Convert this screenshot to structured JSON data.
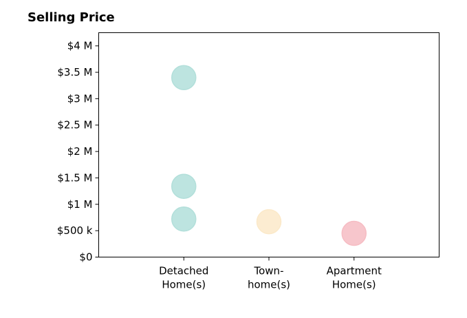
{
  "chart_data": {
    "type": "scatter",
    "title": "Selling Price",
    "categories": [
      "Detached\nHome(s)",
      "Town-\nhome(s)",
      "Apartment\nHome(s)"
    ],
    "yticks": [
      {
        "value": 0,
        "label": "$0"
      },
      {
        "value": 500000,
        "label": "$500 k"
      },
      {
        "value": 1000000,
        "label": "$1 M"
      },
      {
        "value": 1500000,
        "label": "$1.5 M"
      },
      {
        "value": 2000000,
        "label": "$2 M"
      },
      {
        "value": 2500000,
        "label": "$2.5 M"
      },
      {
        "value": 3000000,
        "label": "$3 M"
      },
      {
        "value": 3500000,
        "label": "$3.5 M"
      },
      {
        "value": 4000000,
        "label": "$4 M"
      }
    ],
    "ylim": [
      0,
      4250000
    ],
    "xlim": [
      -1,
      3
    ],
    "grid": false,
    "points": [
      {
        "category": "Detached\nHome(s)",
        "value": 3400000,
        "color": "#b2dfda"
      },
      {
        "category": "Detached\nHome(s)",
        "value": 1340000,
        "color": "#b2dfda"
      },
      {
        "category": "Detached\nHome(s)",
        "value": 720000,
        "color": "#b2dfda"
      },
      {
        "category": "Town-\nhome(s)",
        "value": 670000,
        "color": "#fbe9c9"
      },
      {
        "category": "Apartment\nHome(s)",
        "value": 450000,
        "color": "#f6bcc3"
      }
    ]
  }
}
